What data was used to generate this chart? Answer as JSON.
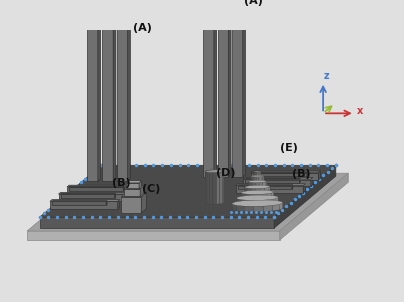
{
  "bg_color": "#e0e0e0",
  "labels": {
    "A_left": "(A)",
    "A_right": "(A)",
    "B_left": "(B)",
    "B_right": "(B)",
    "C": "(C)",
    "D": "(D)",
    "E": "(E)"
  },
  "blue_color": "#5599dd",
  "axis_z_color": "#4477cc",
  "axis_x_color": "#cc3333",
  "axis_y_color": "#99bb33",
  "plate_dark": "#484848",
  "plate_mid": "#555555",
  "base_light": "#a0a0a0",
  "base_mid": "#909090",
  "pillar_front": "#707070",
  "pillar_side": "#555555",
  "pillar_top": "#999999"
}
